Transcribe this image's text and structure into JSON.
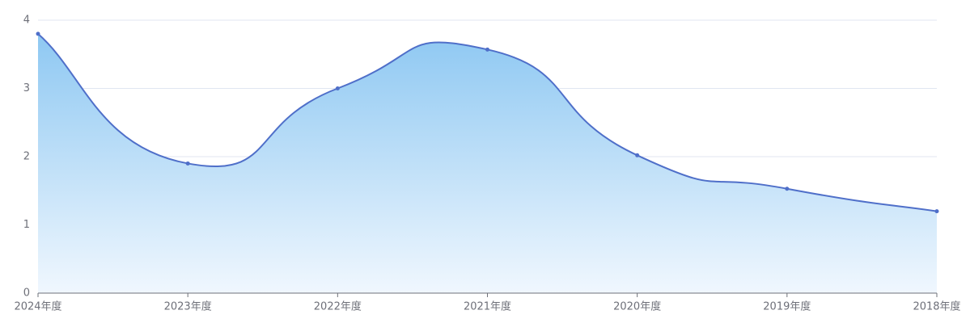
{
  "chart_data": {
    "type": "area",
    "categories": [
      "2024年度",
      "2023年度",
      "2022年度",
      "2021年度",
      "2020年度",
      "2019年度",
      "2018年度"
    ],
    "series": [
      {
        "values": [
          3.8,
          1.9,
          3.0,
          3.57,
          2.02,
          1.53,
          1.2
        ],
        "color": "#4f6fc9"
      }
    ],
    "ylim": [
      0,
      4
    ],
    "yticks": [
      0,
      1,
      2,
      3,
      4
    ],
    "grid": true,
    "smooth": true,
    "fill_gradient": [
      "#8ec8f2",
      "#f0f7fe"
    ]
  }
}
